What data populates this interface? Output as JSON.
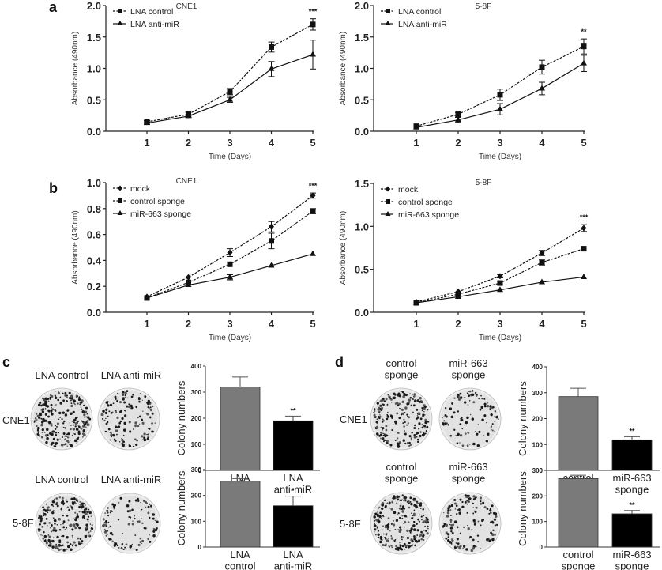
{
  "panels": {
    "a": "a",
    "b": "b",
    "c": "c",
    "d": "d"
  },
  "chart_data": [
    {
      "id": "a-cne1",
      "type": "line",
      "panel": "a",
      "title": "CNE1",
      "xlabel": "Time (Days)",
      "ylabel": "Absorbance (490nm)",
      "x": [
        1,
        2,
        3,
        4,
        5
      ],
      "ylim": [
        0,
        2.0
      ],
      "yticks": [
        "0.0",
        "0.5",
        "1.0",
        "1.5",
        "2.0"
      ],
      "legend": "top-left",
      "series": [
        {
          "name": "LNA control",
          "marker": "square",
          "dashed": true,
          "values": [
            0.15,
            0.27,
            0.63,
            1.34,
            1.7
          ],
          "errors": [
            0.02,
            0.03,
            0.05,
            0.08,
            0.09
          ]
        },
        {
          "name": "LNA anti-miR",
          "marker": "triangle",
          "dashed": false,
          "values": [
            0.13,
            0.24,
            0.5,
            0.99,
            1.22
          ],
          "errors": [
            0.02,
            0.02,
            0.04,
            0.12,
            0.23
          ]
        }
      ],
      "annotations": [
        {
          "x": 5,
          "text": "***"
        }
      ]
    },
    {
      "id": "a-58f",
      "type": "line",
      "panel": "a",
      "title": "5-8F",
      "xlabel": "Time (Days)",
      "ylabel": "Absorbance (490nm)",
      "x": [
        1,
        2,
        3,
        4,
        5
      ],
      "ylim": [
        0,
        2.0
      ],
      "yticks": [
        "0.0",
        "0.5",
        "1.0",
        "1.5",
        "2.0"
      ],
      "legend": "top-left",
      "series": [
        {
          "name": "LNA control",
          "marker": "square",
          "dashed": true,
          "values": [
            0.08,
            0.27,
            0.58,
            1.02,
            1.35
          ],
          "errors": [
            0.01,
            0.03,
            0.09,
            0.11,
            0.12
          ]
        },
        {
          "name": "LNA anti-miR",
          "marker": "triangle",
          "dashed": false,
          "values": [
            0.06,
            0.18,
            0.35,
            0.68,
            1.08
          ],
          "errors": [
            0.01,
            0.04,
            0.09,
            0.1,
            0.13
          ]
        }
      ],
      "annotations": [
        {
          "x": 5,
          "text": "**"
        }
      ]
    },
    {
      "id": "b-cne1",
      "type": "line",
      "panel": "b",
      "title": "CNE1",
      "xlabel": "Time (Days)",
      "ylabel": "Absorbance (490nm)",
      "x": [
        1,
        2,
        3,
        4,
        5
      ],
      "ylim": [
        0,
        1.0
      ],
      "yticks": [
        "0.0",
        "0.2",
        "0.4",
        "0.6",
        "0.8",
        "1.0"
      ],
      "legend": "top-left",
      "series": [
        {
          "name": "mock",
          "marker": "diamond",
          "dashed": true,
          "values": [
            0.12,
            0.27,
            0.46,
            0.66,
            0.9
          ],
          "errors": [
            0.01,
            0.01,
            0.03,
            0.04,
            0.02
          ]
        },
        {
          "name": "control sponge",
          "marker": "square",
          "dashed": true,
          "values": [
            0.11,
            0.23,
            0.37,
            0.55,
            0.78
          ],
          "errors": [
            0.01,
            0.01,
            0.01,
            0.06,
            0.02
          ]
        },
        {
          "name": "miR-663 sponge",
          "marker": "triangle",
          "dashed": false,
          "values": [
            0.11,
            0.21,
            0.27,
            0.36,
            0.45
          ],
          "errors": [
            0.01,
            0.01,
            0.02,
            0.01,
            0.01
          ]
        }
      ],
      "annotations": [
        {
          "x": 5,
          "text": "***"
        }
      ]
    },
    {
      "id": "b-58f",
      "type": "line",
      "panel": "b",
      "title": "5-8F",
      "xlabel": "Time (Days)",
      "ylabel": "Absorbance (490nm)",
      "x": [
        1,
        2,
        3,
        4,
        5
      ],
      "ylim": [
        0,
        1.5
      ],
      "yticks": [
        "0.0",
        "0.5",
        "1.0",
        "1.5"
      ],
      "legend": "top-left",
      "series": [
        {
          "name": "mock",
          "marker": "diamond",
          "dashed": true,
          "values": [
            0.12,
            0.24,
            0.42,
            0.69,
            0.98
          ],
          "errors": [
            0.01,
            0.01,
            0.02,
            0.03,
            0.04
          ]
        },
        {
          "name": "control sponge",
          "marker": "square",
          "dashed": true,
          "values": [
            0.11,
            0.21,
            0.34,
            0.58,
            0.74
          ],
          "errors": [
            0.01,
            0.01,
            0.02,
            0.03,
            0.01
          ]
        },
        {
          "name": "miR-663 sponge",
          "marker": "triangle",
          "dashed": false,
          "values": [
            0.11,
            0.18,
            0.26,
            0.35,
            0.41
          ],
          "errors": [
            0.01,
            0.01,
            0.01,
            0.01,
            0.01
          ]
        }
      ],
      "annotations": [
        {
          "x": 5,
          "text": "***"
        }
      ]
    },
    {
      "id": "c-cne1",
      "type": "bar",
      "panel": "c",
      "ylabel": "Colony numbers",
      "categories": [
        "LNA\ncontrol",
        "LNA\nanti-miR"
      ],
      "ylim": [
        0,
        400
      ],
      "yticks": [
        "0",
        "100",
        "200",
        "300",
        "400"
      ],
      "values": [
        320,
        190
      ],
      "errors": [
        38,
        18
      ],
      "colors": [
        "#7a7a7a",
        "#000000"
      ],
      "annotations": [
        {
          "category": 1,
          "text": "**"
        }
      ]
    },
    {
      "id": "c-58f",
      "type": "bar",
      "panel": "c",
      "ylabel": "Colony numbers",
      "categories": [
        "LNA\ncontrol",
        "LNA\nanti-miR"
      ],
      "ylim": [
        0,
        300
      ],
      "yticks": [
        "0",
        "100",
        "200",
        "300"
      ],
      "values": [
        255,
        160
      ],
      "errors": [
        10,
        37
      ],
      "colors": [
        "#7a7a7a",
        "#000000"
      ],
      "annotations": [
        {
          "category": 1,
          "text": "*"
        }
      ]
    },
    {
      "id": "d-cne1",
      "type": "bar",
      "panel": "d",
      "ylabel": "Colony numbers",
      "categories": [
        "control\nsponge",
        "miR-663\nsponge"
      ],
      "ylim": [
        0,
        400
      ],
      "yticks": [
        "0",
        "100",
        "200",
        "300",
        "400"
      ],
      "values": [
        285,
        118
      ],
      "errors": [
        32,
        12
      ],
      "colors": [
        "#7a7a7a",
        "#000000"
      ],
      "annotations": [
        {
          "category": 1,
          "text": "**"
        }
      ]
    },
    {
      "id": "d-58f",
      "type": "bar",
      "panel": "d",
      "ylabel": "Colony numbers",
      "categories": [
        "control\nsponge",
        "miR-663\nsponge"
      ],
      "ylim": [
        0,
        300
      ],
      "yticks": [
        "0",
        "100",
        "200",
        "300"
      ],
      "values": [
        268,
        130
      ],
      "errors": [
        13,
        13
      ],
      "colors": [
        "#7a7a7a",
        "#000000"
      ],
      "annotations": [
        {
          "category": 1,
          "text": "**"
        }
      ]
    }
  ],
  "plates": {
    "c": {
      "col_labels": [
        "LNA control",
        "LNA  anti-miR"
      ],
      "col_labels_row2": [
        "LNA control",
        "LNA anti-miR"
      ],
      "rows": [
        "CNE1",
        "5-8F"
      ]
    },
    "d": {
      "col_labels": [
        "control\nsponge",
        "miR-663\nsponge"
      ],
      "rows": [
        "CNE1",
        "5-8F"
      ]
    }
  }
}
